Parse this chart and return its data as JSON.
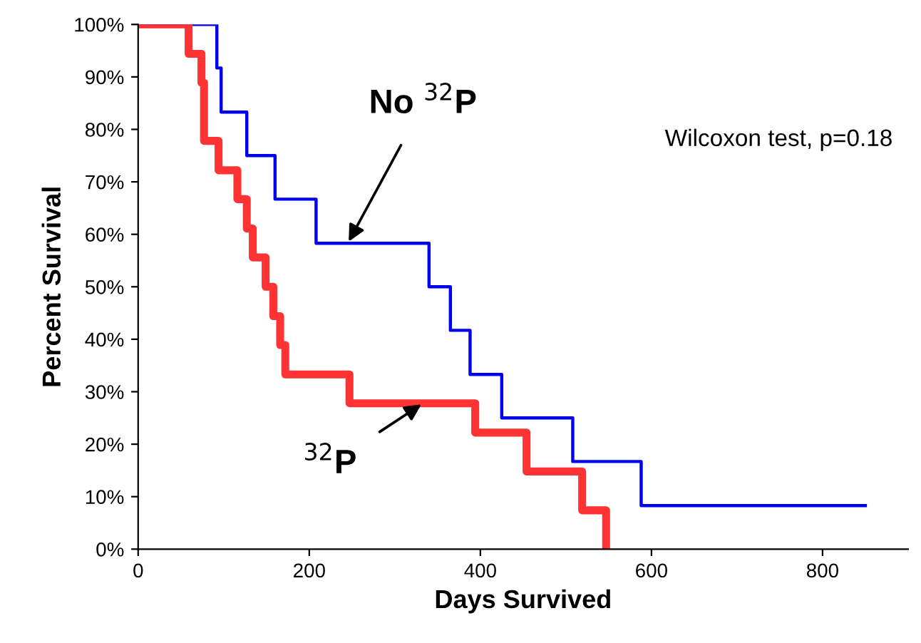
{
  "chart_data": {
    "type": "step",
    "xlabel": "Days Survived",
    "ylabel": "Percent Survival",
    "xlim": [
      0,
      900
    ],
    "xticks": [
      0,
      200,
      400,
      600,
      800
    ],
    "ylim": [
      0,
      100
    ],
    "yticks": [
      {
        "value": 0,
        "label": "0%"
      },
      {
        "value": 10,
        "label": "10%"
      },
      {
        "value": 20,
        "label": "20%"
      },
      {
        "value": 30,
        "label": "30%"
      },
      {
        "value": 40,
        "label": "40%"
      },
      {
        "value": 50,
        "label": "50%"
      },
      {
        "value": 60,
        "label": "60%"
      },
      {
        "value": 70,
        "label": "70%"
      },
      {
        "value": 80,
        "label": "80%"
      },
      {
        "value": 90,
        "label": "90%"
      },
      {
        "value": 100,
        "label": "100%"
      }
    ],
    "grid": false,
    "legend": false,
    "marker": "none",
    "line_style": "solid",
    "series": [
      {
        "color": "#0000ee",
        "x": [
          0,
          92,
          97,
          127,
          160,
          208,
          340,
          365,
          388,
          425,
          508,
          588,
          850
        ],
        "values": [
          100,
          91.7,
          83.3,
          75,
          66.7,
          58.3,
          50,
          41.7,
          33.3,
          25,
          16.7,
          8.3,
          8.3
        ]
      },
      {
        "color": "#ff3333",
        "x": [
          0,
          59,
          74,
          77,
          94,
          116,
          127,
          134,
          149,
          158,
          166,
          172,
          247,
          394,
          454,
          519,
          547
        ],
        "values": [
          100,
          94.4,
          88.9,
          77.8,
          72.2,
          66.7,
          61.1,
          55.6,
          50,
          44.4,
          38.9,
          33.3,
          27.8,
          22.2,
          14.8,
          7.4,
          0
        ]
      }
    ],
    "annotations": [
      {
        "text": "No $^{32}$P",
        "x": 245,
        "y": 58.3
      },
      {
        "text": "$^{32}$P",
        "x": 333,
        "y": 27.8
      },
      "Wilcoxon test, p=0.18"
    ]
  }
}
